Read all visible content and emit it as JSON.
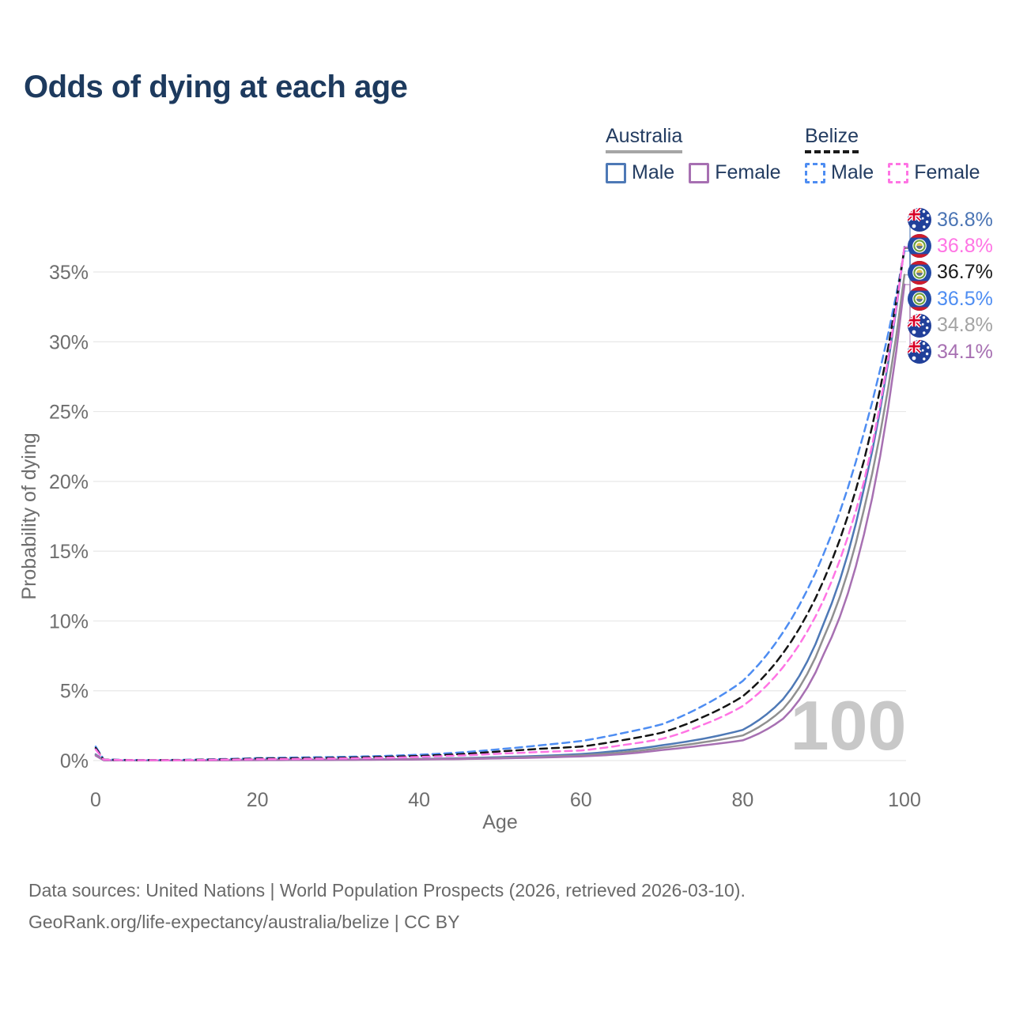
{
  "title": "Odds of dying at each age",
  "legend": {
    "groups": [
      {
        "label": "Australia",
        "line_style": "solid",
        "underline_color": "#a6a6a6",
        "items": [
          {
            "label": "Male",
            "color": "#4e79b6"
          },
          {
            "label": "Female",
            "color": "#a770b2"
          }
        ]
      },
      {
        "label": "Belize",
        "line_style": "dashed",
        "underline_color": "#1a1a1a",
        "items": [
          {
            "label": "Male",
            "color": "#4e8df2"
          },
          {
            "label": "Female",
            "color": "#ff74e4"
          }
        ]
      }
    ]
  },
  "footer": {
    "line1": "Data sources: United Nations | World Population Prospects (2026, retrieved 2026-03-10).",
    "line2": "GeoRank.org/life-expectancy/australia/belize | CC BY"
  },
  "chart_data": {
    "type": "line",
    "title": "Odds of dying at each age",
    "xlabel": "Age",
    "ylabel": "Probability of dying",
    "xlim": [
      0,
      100
    ],
    "ylim": [
      0,
      37.5
    ],
    "xticks": [
      0,
      20,
      40,
      60,
      80,
      100
    ],
    "yticks": [
      0,
      5,
      10,
      15,
      20,
      25,
      30,
      35
    ],
    "ytick_suffix": "%",
    "grid": "horizontal-only",
    "legend_position": "top-right",
    "watermark": "100",
    "x": [
      0,
      1,
      5,
      10,
      15,
      20,
      25,
      30,
      35,
      40,
      45,
      50,
      55,
      60,
      65,
      70,
      75,
      80,
      85,
      90,
      95,
      100
    ],
    "series": [
      {
        "name": "Australia Male",
        "country": "australia",
        "sex": "male",
        "color": "#4e79b6",
        "dash": "solid",
        "values": [
          0.45,
          0.03,
          0.01,
          0.01,
          0.04,
          0.06,
          0.07,
          0.08,
          0.09,
          0.12,
          0.17,
          0.25,
          0.34,
          0.47,
          0.72,
          1.1,
          1.55,
          2.2,
          4.4,
          9.8,
          19.5,
          36.8
        ]
      },
      {
        "name": "Australia Both sexes",
        "country": "australia",
        "sex": "both",
        "color": "#909090",
        "dash": "solid",
        "values": [
          0.4,
          0.03,
          0.01,
          0.01,
          0.03,
          0.05,
          0.06,
          0.06,
          0.08,
          0.1,
          0.14,
          0.2,
          0.28,
          0.38,
          0.58,
          0.92,
          1.3,
          1.8,
          3.7,
          8.8,
          18.0,
          34.8
        ]
      },
      {
        "name": "Australia Female",
        "country": "australia",
        "sex": "female",
        "color": "#a770b2",
        "dash": "solid",
        "values": [
          0.35,
          0.02,
          0.01,
          0.01,
          0.02,
          0.03,
          0.04,
          0.05,
          0.06,
          0.08,
          0.11,
          0.16,
          0.22,
          0.3,
          0.46,
          0.76,
          1.08,
          1.45,
          3.0,
          7.6,
          16.2,
          34.1
        ]
      },
      {
        "name": "Belize Male",
        "country": "belize",
        "sex": "male",
        "color": "#4e8df2",
        "dash": "dashed",
        "values": [
          1.0,
          0.08,
          0.04,
          0.05,
          0.1,
          0.18,
          0.22,
          0.26,
          0.32,
          0.42,
          0.58,
          0.82,
          1.1,
          1.4,
          1.95,
          2.6,
          3.9,
          5.7,
          9.2,
          14.8,
          23.5,
          36.5
        ]
      },
      {
        "name": "Belize Both sexes",
        "country": "belize",
        "sex": "both",
        "color": "#141414",
        "dash": "dashed",
        "values": [
          0.9,
          0.07,
          0.03,
          0.04,
          0.08,
          0.14,
          0.17,
          0.2,
          0.26,
          0.33,
          0.46,
          0.66,
          0.85,
          1.0,
          1.45,
          2.0,
          3.1,
          4.6,
          7.7,
          12.9,
          21.5,
          36.7
        ]
      },
      {
        "name": "Belize Female",
        "country": "belize",
        "sex": "female",
        "color": "#ff74e4",
        "dash": "dashed",
        "values": [
          0.8,
          0.06,
          0.03,
          0.03,
          0.06,
          0.1,
          0.12,
          0.15,
          0.19,
          0.26,
          0.36,
          0.5,
          0.62,
          0.72,
          1.1,
          1.55,
          2.55,
          3.9,
          6.7,
          11.5,
          20.0,
          36.8
        ]
      }
    ],
    "end_labels": [
      {
        "text": "36.8%",
        "series": "Australia Male",
        "flag": "australia-flag",
        "color": "#4a74b4"
      },
      {
        "text": "36.8%",
        "series": "Belize Female",
        "flag": "belize-flag",
        "color": "#ff74e4"
      },
      {
        "text": "36.7%",
        "series": "Belize Both sexes",
        "flag": "belize-flag",
        "color": "#1a1a1a"
      },
      {
        "text": "36.5%",
        "series": "Belize Male",
        "flag": "belize-flag",
        "color": "#4e8df2"
      },
      {
        "text": "34.8%",
        "series": "Australia Both sexes",
        "flag": "australia-flag",
        "color": "#a3a3a3"
      },
      {
        "text": "34.1%",
        "series": "Australia Female",
        "flag": "australia-flag",
        "color": "#a770b2"
      }
    ]
  }
}
